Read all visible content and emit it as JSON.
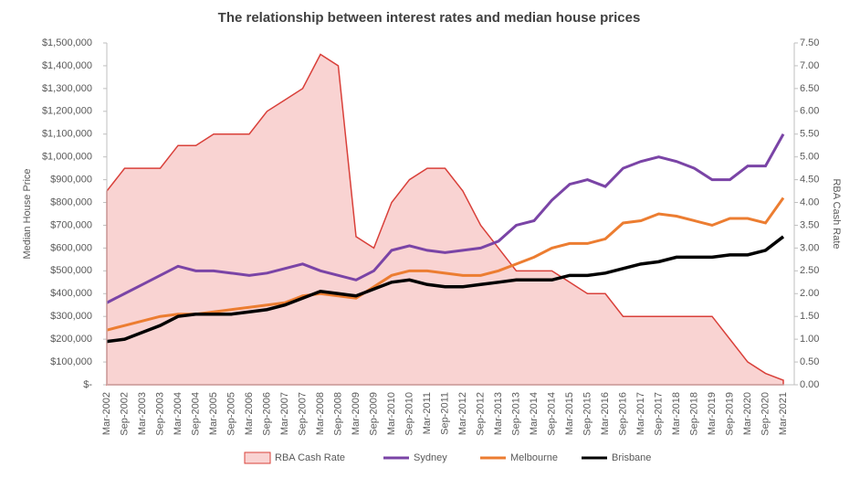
{
  "chart_data": {
    "type": "line",
    "title": "The relationship between interest rates and median house prices",
    "y_label": "Median House Price",
    "y2_label": "RBA Cash Rate",
    "categories": [
      "Mar-2002",
      "Sep-2002",
      "Mar-2003",
      "Sep-2003",
      "Mar-2004",
      "Sep-2004",
      "Mar-2005",
      "Sep-2005",
      "Mar-2006",
      "Sep-2006",
      "Mar-2007",
      "Sep-2007",
      "Mar-2008",
      "Sep-2008",
      "Mar-2009",
      "Sep-2009",
      "Mar-2010",
      "Sep-2010",
      "Mar-2011",
      "Sep-2011",
      "Mar-2012",
      "Sep-2012",
      "Mar-2013",
      "Sep-2013",
      "Mar-2014",
      "Sep-2014",
      "Mar-2015",
      "Sep-2015",
      "Mar-2016",
      "Sep-2016",
      "Mar-2017",
      "Sep-2017",
      "Mar-2018",
      "Sep-2018",
      "Mar-2019",
      "Sep-2019",
      "Mar-2020",
      "Sep-2020",
      "Mar-2021"
    ],
    "series": [
      {
        "name": "RBA Cash Rate",
        "type": "area",
        "axis": "y2",
        "color": "#d9403a",
        "fill": "#f9d3d2",
        "values": [
          4.25,
          4.75,
          4.75,
          4.75,
          5.25,
          5.25,
          5.5,
          5.5,
          5.5,
          6.0,
          6.25,
          6.5,
          7.25,
          7.0,
          3.25,
          3.0,
          4.0,
          4.5,
          4.75,
          4.75,
          4.25,
          3.5,
          3.0,
          2.5,
          2.5,
          2.5,
          2.25,
          2.0,
          2.0,
          1.5,
          1.5,
          1.5,
          1.5,
          1.5,
          1.5,
          1.0,
          0.5,
          0.25,
          0.1
        ]
      },
      {
        "name": "Sydney",
        "type": "line",
        "color": "#7a44a6",
        "values": [
          360000,
          400000,
          440000,
          480000,
          520000,
          500000,
          500000,
          490000,
          480000,
          490000,
          510000,
          530000,
          500000,
          480000,
          460000,
          500000,
          590000,
          610000,
          590000,
          580000,
          590000,
          600000,
          630000,
          700000,
          720000,
          810000,
          880000,
          900000,
          870000,
          950000,
          980000,
          1000000,
          980000,
          950000,
          900000,
          900000,
          960000,
          960000,
          1100000
        ]
      },
      {
        "name": "Melbourne",
        "type": "line",
        "color": "#ec7d31",
        "values": [
          240000,
          260000,
          280000,
          300000,
          310000,
          310000,
          320000,
          330000,
          340000,
          350000,
          360000,
          390000,
          400000,
          390000,
          380000,
          430000,
          480000,
          500000,
          500000,
          490000,
          480000,
          480000,
          500000,
          530000,
          560000,
          600000,
          620000,
          620000,
          640000,
          710000,
          720000,
          750000,
          740000,
          720000,
          700000,
          730000,
          730000,
          710000,
          820000
        ]
      },
      {
        "name": "Brisbane",
        "type": "line",
        "color": "#000000",
        "values": [
          190000,
          200000,
          230000,
          260000,
          300000,
          310000,
          310000,
          310000,
          320000,
          330000,
          350000,
          380000,
          410000,
          400000,
          390000,
          420000,
          450000,
          460000,
          440000,
          430000,
          430000,
          440000,
          450000,
          460000,
          460000,
          460000,
          480000,
          480000,
          490000,
          510000,
          530000,
          540000,
          560000,
          560000,
          560000,
          570000,
          570000,
          590000,
          650000
        ]
      }
    ],
    "ylim": [
      0,
      1500000
    ],
    "yticks": [
      {
        "value": 0,
        "label": "$-"
      },
      {
        "value": 100000,
        "label": "$100,000"
      },
      {
        "value": 200000,
        "label": "$200,000"
      },
      {
        "value": 300000,
        "label": "$300,000"
      },
      {
        "value": 400000,
        "label": "$400,000"
      },
      {
        "value": 500000,
        "label": "$500,000"
      },
      {
        "value": 600000,
        "label": "$600,000"
      },
      {
        "value": 700000,
        "label": "$700,000"
      },
      {
        "value": 800000,
        "label": "$800,000"
      },
      {
        "value": 900000,
        "label": "$900,000"
      },
      {
        "value": 1000000,
        "label": "$1,000,000"
      },
      {
        "value": 1100000,
        "label": "$1,100,000"
      },
      {
        "value": 1200000,
        "label": "$1,200,000"
      },
      {
        "value": 1300000,
        "label": "$1,300,000"
      },
      {
        "value": 1400000,
        "label": "$1,400,000"
      },
      {
        "value": 1500000,
        "label": "$1,500,000"
      }
    ],
    "y2lim": [
      0,
      7.5
    ],
    "y2ticks": [
      {
        "value": 0,
        "label": "0.00"
      },
      {
        "value": 0.5,
        "label": "0.50"
      },
      {
        "value": 1,
        "label": "1.00"
      },
      {
        "value": 1.5,
        "label": "1.50"
      },
      {
        "value": 2,
        "label": "2.00"
      },
      {
        "value": 2.5,
        "label": "2.50"
      },
      {
        "value": 3,
        "label": "3.00"
      },
      {
        "value": 3.5,
        "label": "3.50"
      },
      {
        "value": 4,
        "label": "4.00"
      },
      {
        "value": 4.5,
        "label": "4.50"
      },
      {
        "value": 5,
        "label": "5.00"
      },
      {
        "value": 5.5,
        "label": "5.50"
      },
      {
        "value": 6,
        "label": "6.00"
      },
      {
        "value": 6.5,
        "label": "6.50"
      },
      {
        "value": 7,
        "label": "7.00"
      },
      {
        "value": 7.5,
        "label": "7.50"
      }
    ],
    "legend": "bottom"
  }
}
